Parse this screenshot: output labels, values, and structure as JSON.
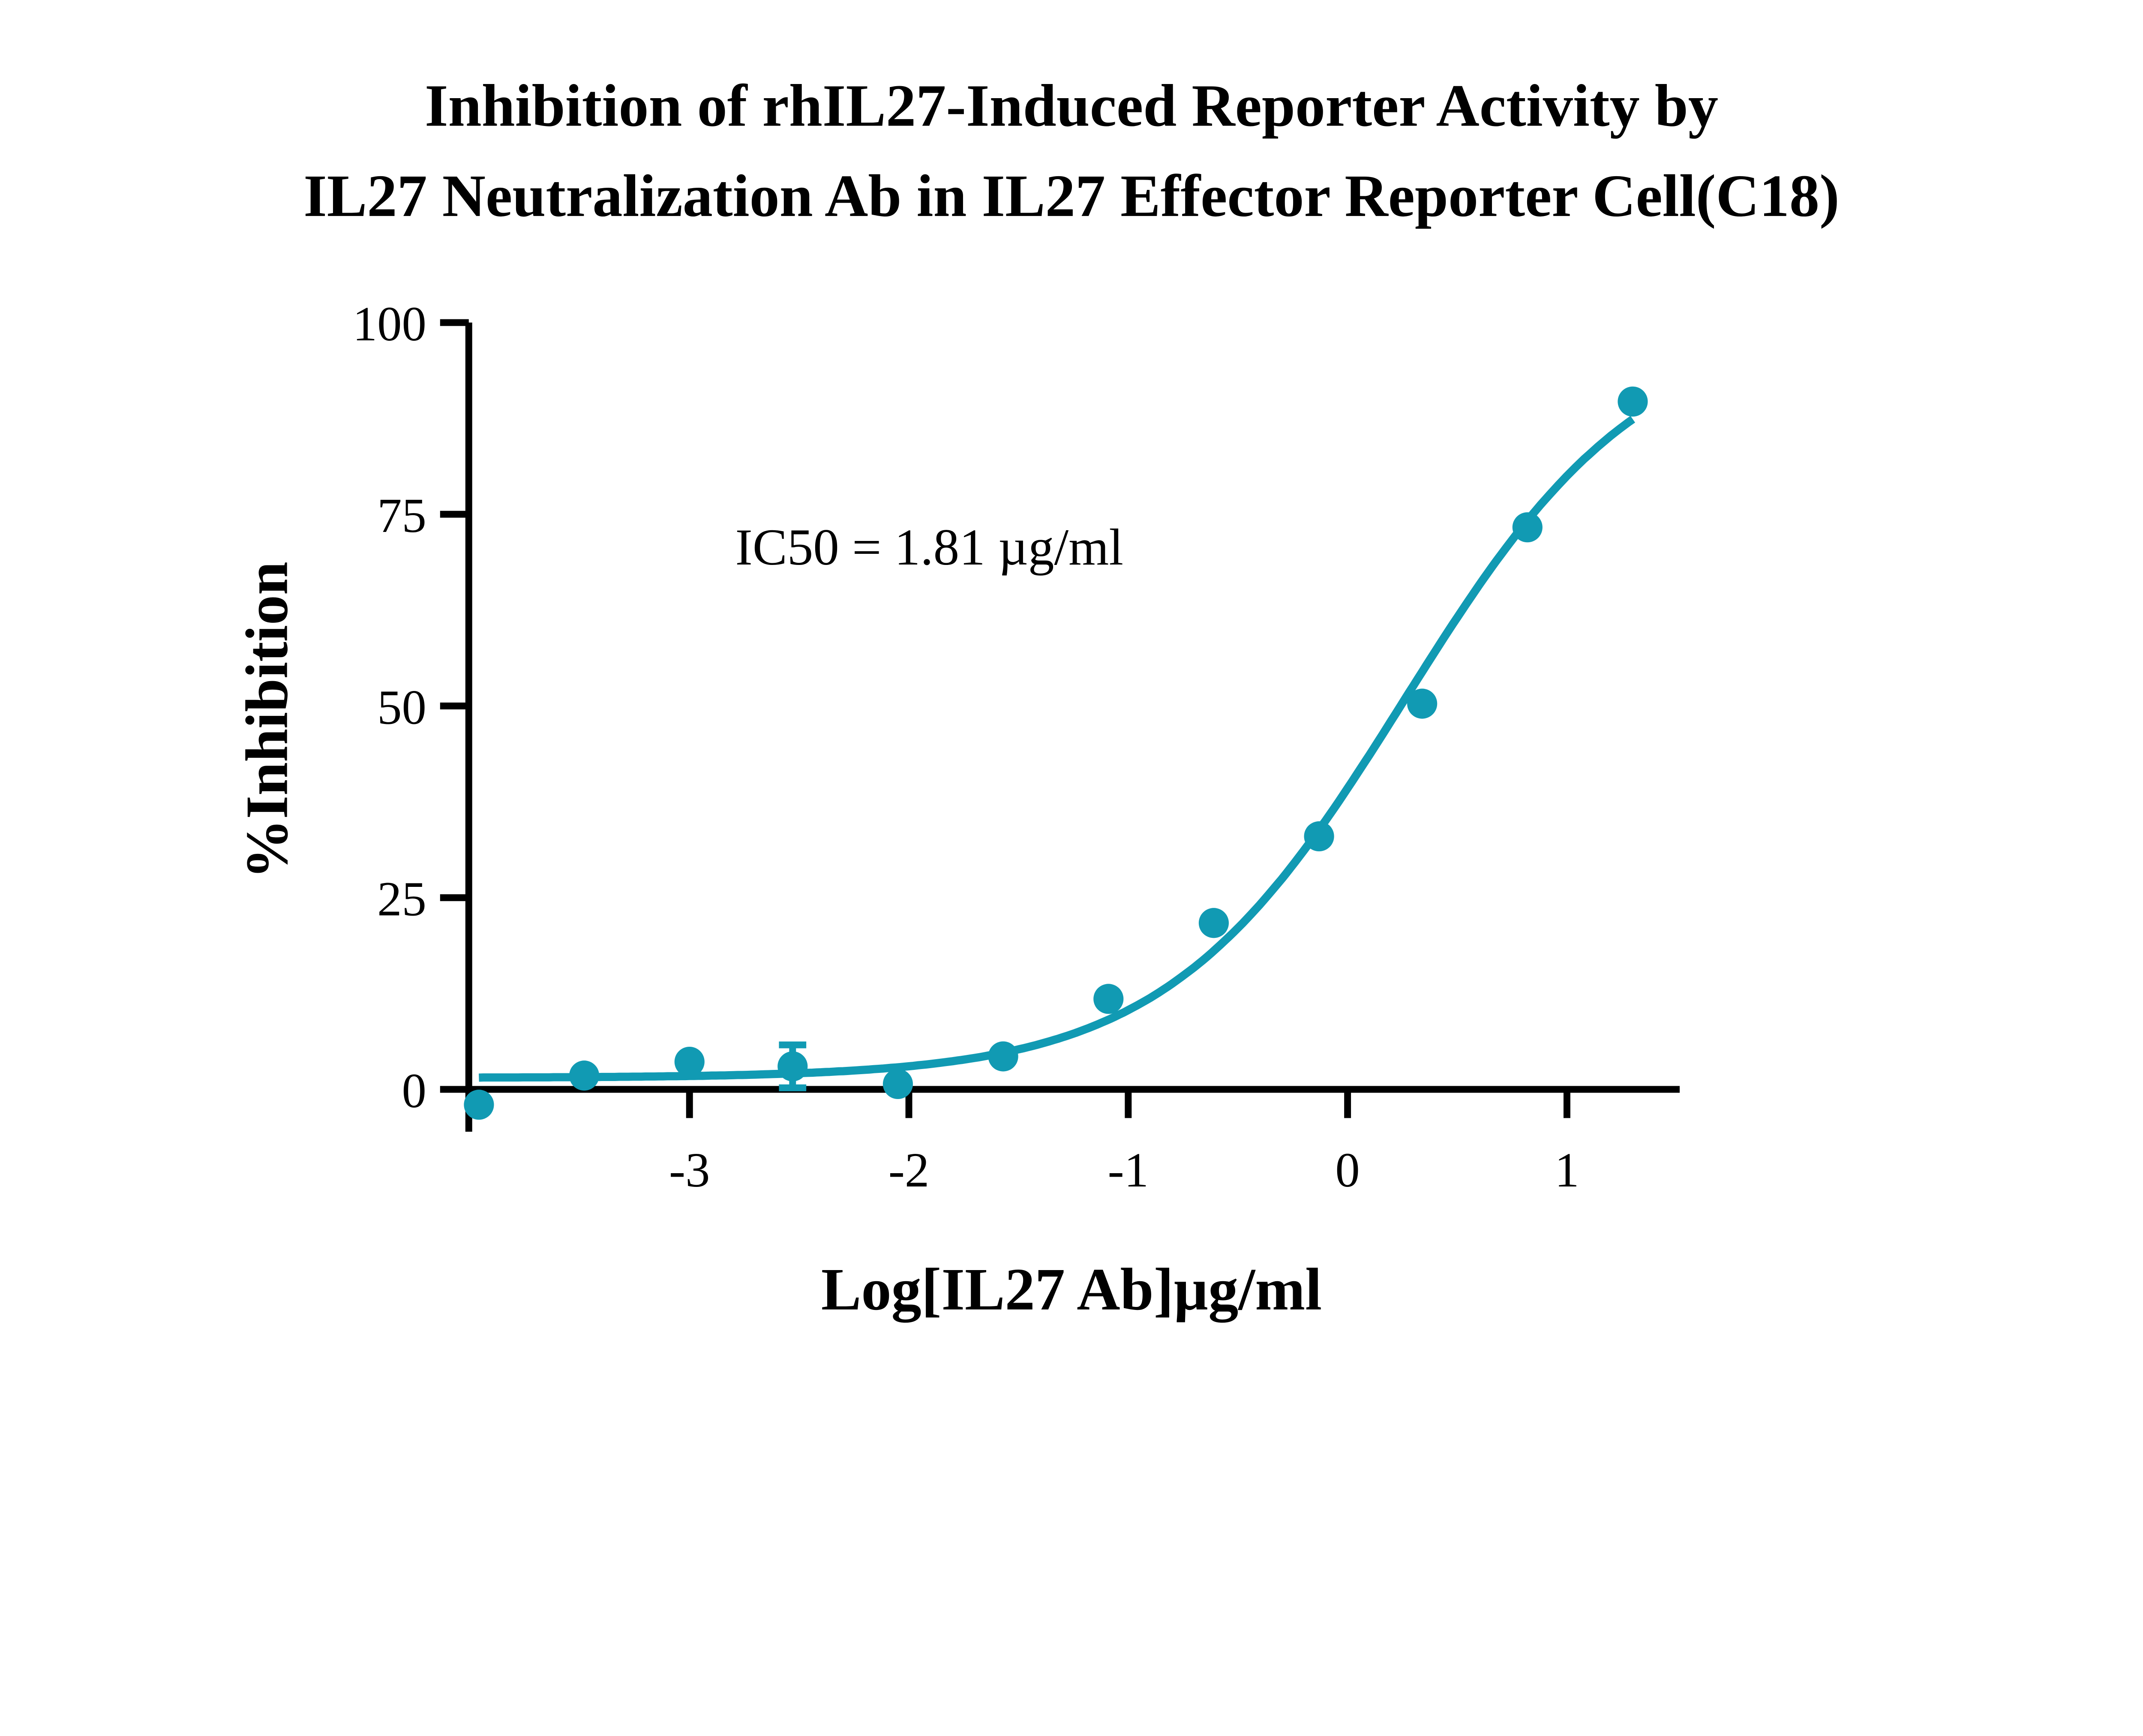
{
  "chart_data": {
    "type": "scatter",
    "title": [
      "Inhibition of rhIL27-Induced Reporter Activity by",
      "IL27 Neutralization Ab in IL27 Effector Reporter Cell(C18)"
    ],
    "xlabel": "Log[IL27 Ab]µg/ml",
    "ylabel": "%Inhibition",
    "xlim": [
      -4.0,
      1.5
    ],
    "ylim": [
      0,
      100
    ],
    "xticks": [
      -3,
      -2,
      -1,
      0,
      1
    ],
    "xtick_labels": [
      "-3",
      "-2",
      "-1",
      "0",
      "1"
    ],
    "yticks": [
      0,
      25,
      50,
      75,
      100
    ],
    "ytick_labels": [
      "0",
      "25",
      "50",
      "75",
      "100"
    ],
    "grid": false,
    "annotation": "IC50 = 1.81 µg/ml",
    "color": "#119AB3",
    "points": [
      {
        "x": -3.96,
        "y": -2.0
      },
      {
        "x": -3.48,
        "y": 1.8
      },
      {
        "x": -3.0,
        "y": 3.6
      },
      {
        "x": -2.53,
        "y": 3.0,
        "err": 2.8
      },
      {
        "x": -2.05,
        "y": 0.7
      },
      {
        "x": -1.57,
        "y": 4.3
      },
      {
        "x": -1.09,
        "y": 11.8
      },
      {
        "x": -0.61,
        "y": 21.7
      },
      {
        "x": -0.13,
        "y": 33.0
      },
      {
        "x": 0.34,
        "y": 50.3
      },
      {
        "x": 0.82,
        "y": 73.3
      },
      {
        "x": 1.3,
        "y": 89.7
      }
    ],
    "fit": {
      "model": "4PL",
      "bottom": 1.5,
      "top": 100,
      "logIC50": 0.258,
      "hill": 0.8,
      "x_range": [
        -3.96,
        1.3
      ]
    }
  }
}
